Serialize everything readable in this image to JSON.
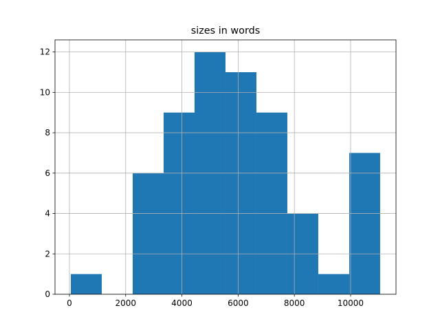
{
  "chart_data": {
    "type": "histogram",
    "title": "sizes in words",
    "bins": [
      50,
      1150,
      2250,
      3350,
      4450,
      5550,
      6650,
      7750,
      8850,
      9950,
      11050
    ],
    "values": [
      1,
      0,
      6,
      9,
      12,
      11,
      9,
      4,
      1,
      7
    ],
    "color": "#1f77b4",
    "xlim": [
      -513,
      11614
    ],
    "xticks": [
      0,
      2000,
      4000,
      6000,
      8000,
      10000
    ],
    "ylim": [
      0,
      12.6
    ],
    "yticks": [
      0,
      2,
      4,
      6,
      8,
      10,
      12
    ],
    "grid": true
  }
}
